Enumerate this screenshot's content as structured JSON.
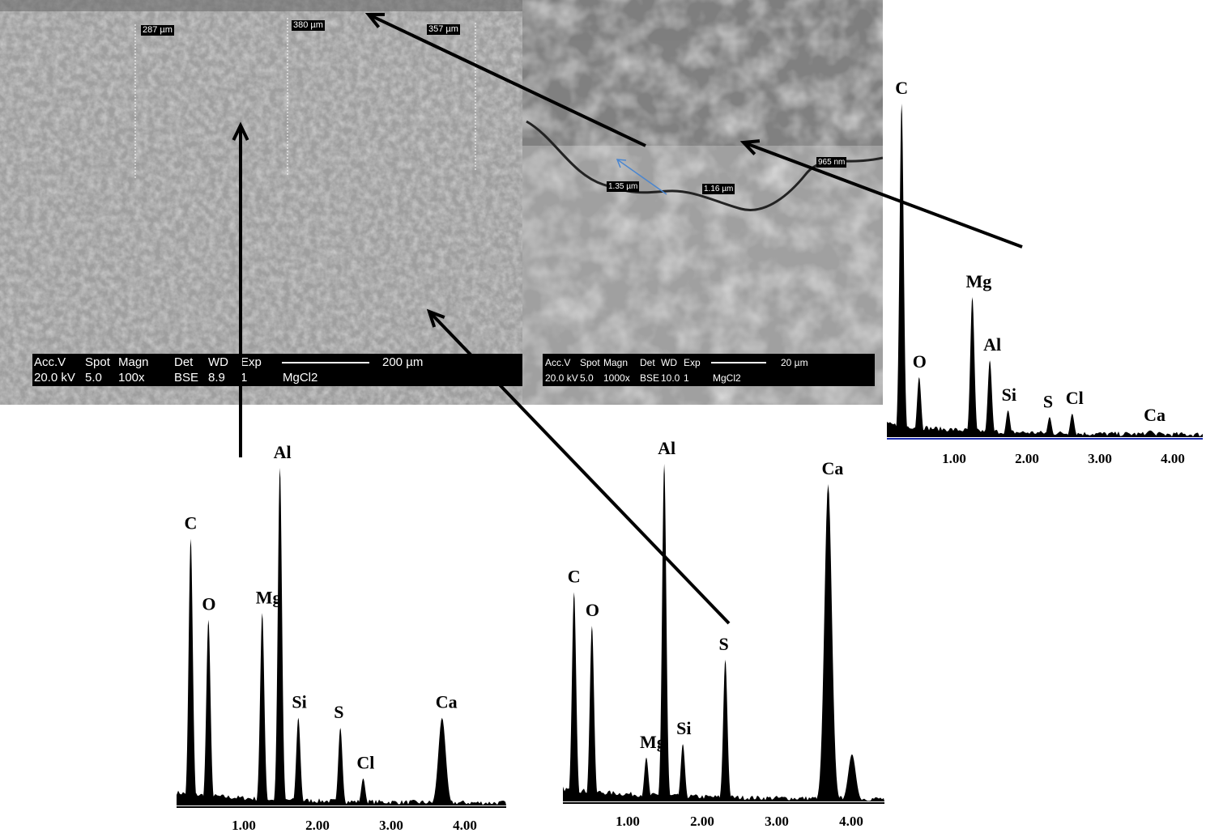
{
  "sem_images": [
    {
      "banner": {
        "row1": [
          "Acc.V",
          "Spot",
          "Magn",
          "Det",
          "WD",
          "Exp"
        ],
        "row2": [
          "20.0 kV",
          "5.0",
          "100x",
          "BSE",
          "8.9",
          "1"
        ],
        "scale": "200 µm",
        "sample": "MgCl2"
      },
      "measurements": [
        "287 µm",
        "380 µm",
        "357 µm"
      ]
    },
    {
      "banner": {
        "row1": [
          "Acc.V",
          "Spot",
          "Magn",
          "Det",
          "WD",
          "Exp"
        ],
        "row2": [
          "20.0 kV",
          "5.0",
          "1000x",
          "BSE",
          "10.0",
          "1"
        ],
        "scale": "20 µm",
        "sample": "MgCl2"
      },
      "measurements": [
        "1.35 µm",
        "1.16 µm",
        "965 nm"
      ]
    }
  ],
  "chart_data": [
    {
      "type": "line",
      "name_hint": "",
      "x_ticks": [
        "1.00",
        "2.00",
        "3.00",
        "4.00"
      ],
      "xlim": [
        0,
        4.4
      ],
      "peaks": [
        {
          "label": "C",
          "kev": 0.28,
          "rel_intensity": 79
        },
        {
          "label": "O",
          "kev": 0.52,
          "rel_intensity": 55
        },
        {
          "label": "Mg",
          "kev": 1.25,
          "rel_intensity": 57
        },
        {
          "label": "Al",
          "kev": 1.49,
          "rel_intensity": 100
        },
        {
          "label": "Si",
          "kev": 1.74,
          "rel_intensity": 26
        },
        {
          "label": "S",
          "kev": 2.31,
          "rel_intensity": 23
        },
        {
          "label": "Cl",
          "kev": 2.62,
          "rel_intensity": 8
        },
        {
          "label": "Ca",
          "kev": 3.69,
          "rel_intensity": 26
        }
      ]
    },
    {
      "type": "line",
      "x_ticks": [
        "1.00",
        "2.00",
        "3.00",
        "4.00"
      ],
      "xlim": [
        0,
        4.4
      ],
      "peaks": [
        {
          "label": "C",
          "kev": 0.28,
          "rel_intensity": 62
        },
        {
          "label": "O",
          "kev": 0.52,
          "rel_intensity": 52
        },
        {
          "label": "Mg",
          "kev": 1.25,
          "rel_intensity": 13
        },
        {
          "label": "Al",
          "kev": 1.49,
          "rel_intensity": 100
        },
        {
          "label": "Si",
          "kev": 1.74,
          "rel_intensity": 17
        },
        {
          "label": "S",
          "kev": 2.31,
          "rel_intensity": 42
        },
        {
          "label": "Ca",
          "kev": 3.69,
          "rel_intensity": 94
        },
        {
          "label": "",
          "kev": 4.01,
          "rel_intensity": 14
        }
      ]
    },
    {
      "type": "line",
      "x_ticks": [
        "1.00",
        "2.00",
        "3.00",
        "4.00"
      ],
      "xlim": [
        0,
        4.4
      ],
      "peaks": [
        {
          "label": "C",
          "kev": 0.28,
          "rel_intensity": 100
        },
        {
          "label": "O",
          "kev": 0.52,
          "rel_intensity": 18
        },
        {
          "label": "Mg",
          "kev": 1.25,
          "rel_intensity": 42
        },
        {
          "label": "Al",
          "kev": 1.49,
          "rel_intensity": 23
        },
        {
          "label": "Si",
          "kev": 1.74,
          "rel_intensity": 8
        },
        {
          "label": "S",
          "kev": 2.31,
          "rel_intensity": 6
        },
        {
          "label": "Cl",
          "kev": 2.62,
          "rel_intensity": 7
        },
        {
          "label": "Ca",
          "kev": 3.69,
          "rel_intensity": 2
        }
      ]
    }
  ],
  "colors": {
    "sem1": "#a8a8a8",
    "sem2": "#8c8c8c",
    "baseline_right": "#1a2bb0",
    "measure_arrow": "#4a86d0"
  }
}
